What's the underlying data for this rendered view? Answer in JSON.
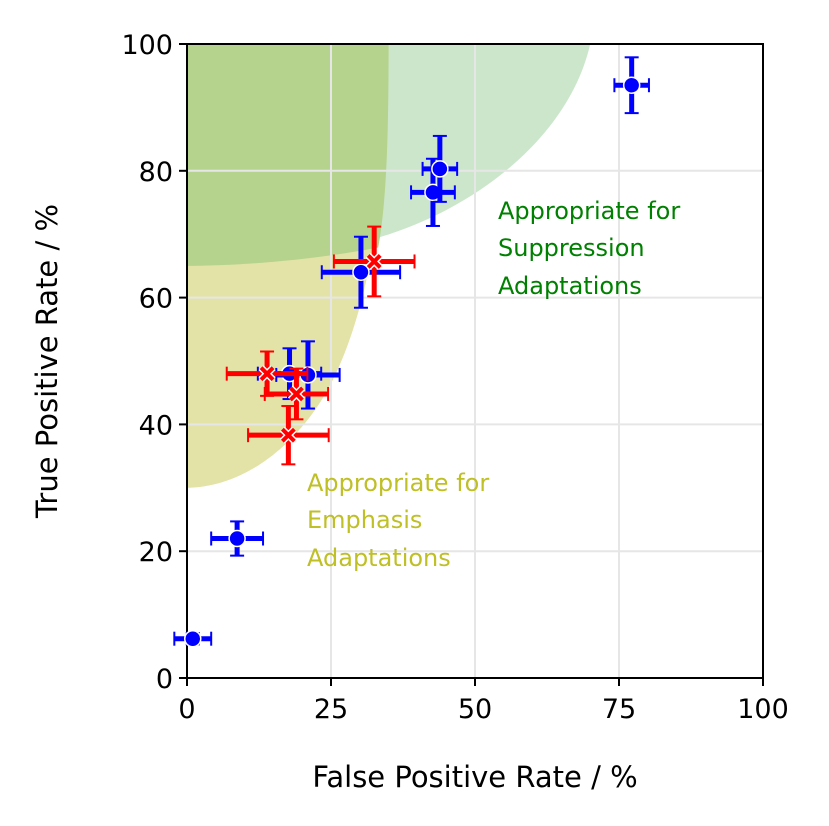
{
  "chart_data": {
    "type": "scatter",
    "title": "",
    "xlabel": "False Positive Rate / %",
    "ylabel": "True Positive Rate / %",
    "xlim": [
      0,
      100
    ],
    "ylim": [
      0,
      100
    ],
    "xticks": [
      "0",
      "25",
      "50",
      "75",
      "100"
    ],
    "yticks": [
      "0",
      "20",
      "40",
      "60",
      "80",
      "100"
    ],
    "grid": true,
    "colors": {
      "series_blue": "#0000ff",
      "series_red": "#ff0000",
      "suppression_region": "#cce6cc",
      "emphasis_region": "#e3e3a8",
      "overlap_region": "#b5d38c",
      "suppression_text": "#008000",
      "emphasis_text": "#bfbf26"
    },
    "regions": [
      {
        "name": "suppression",
        "label_lines": [
          "Appropriate for",
          "Suppression",
          "Adaptations"
        ]
      },
      {
        "name": "emphasis",
        "label_lines": [
          "Appropriate for",
          "Emphasis",
          "Adaptations"
        ]
      }
    ],
    "series": [
      {
        "name": "blue-circles",
        "marker": "circle",
        "color": "#0000ff",
        "points": [
          {
            "x": 1,
            "y": 6.2,
            "xerr": 3.2,
            "yerr": 0.9
          },
          {
            "x": 8.7,
            "y": 22,
            "xerr": 4.5,
            "yerr": 2.7
          },
          {
            "x": 17.8,
            "y": 48,
            "xerr": 5.5,
            "yerr": 4.0
          },
          {
            "x": 21,
            "y": 47.8,
            "xerr": 5.5,
            "yerr": 5.3
          },
          {
            "x": 30.2,
            "y": 64,
            "xerr": 6.8,
            "yerr": 5.6
          },
          {
            "x": 42.7,
            "y": 76.6,
            "xerr": 3.8,
            "yerr": 5.3
          },
          {
            "x": 43.9,
            "y": 80.3,
            "xerr": 3.0,
            "yerr": 5.2
          },
          {
            "x": 77.2,
            "y": 93.5,
            "xerr": 3.0,
            "yerr": 4.4
          }
        ]
      },
      {
        "name": "red-crosses",
        "marker": "x",
        "color": "#ff0000",
        "points": [
          {
            "x": 13.9,
            "y": 48,
            "xerr": 7.0,
            "yerr": 3.5
          },
          {
            "x": 17.6,
            "y": 38.3,
            "xerr": 7.0,
            "yerr": 4.6
          },
          {
            "x": 19,
            "y": 44.8,
            "xerr": 5.5,
            "yerr": 4.0
          },
          {
            "x": 32.5,
            "y": 65.7,
            "xerr": 7.0,
            "yerr": 5.5
          }
        ]
      }
    ]
  }
}
